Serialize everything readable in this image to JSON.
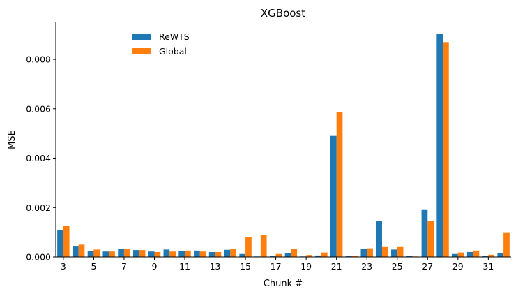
{
  "chart_data": {
    "type": "bar",
    "title": "XGBoost",
    "xlabel": "Chunk #",
    "ylabel": "MSE",
    "ylim": [
      0,
      0.0095
    ],
    "yticks": [
      0.0,
      0.002,
      0.004,
      0.006,
      0.008
    ],
    "ytick_labels": [
      "0.000",
      "0.002",
      "0.004",
      "0.006",
      "0.008"
    ],
    "categories": [
      3,
      4,
      5,
      6,
      7,
      8,
      9,
      10,
      11,
      12,
      13,
      14,
      15,
      16,
      17,
      18,
      19,
      20,
      21,
      22,
      23,
      24,
      25,
      26,
      27,
      28,
      29,
      30,
      31,
      32
    ],
    "xtick_labels": [
      "3",
      "5",
      "7",
      "9",
      "11",
      "13",
      "15",
      "17",
      "19",
      "21",
      "23",
      "25",
      "27",
      "29",
      "31"
    ],
    "legend_position": "top-left",
    "grid": false,
    "series": [
      {
        "name": "ReWTS",
        "color": "#1f77b4",
        "values": [
          0.0011,
          0.00045,
          0.00023,
          0.00022,
          0.00033,
          0.00028,
          0.00022,
          0.0003,
          0.00023,
          0.00026,
          0.0002,
          0.00029,
          0.00012,
          2e-05,
          3e-05,
          0.00015,
          2e-05,
          6e-05,
          0.0049,
          4e-05,
          0.00034,
          0.00145,
          0.0003,
          3e-05,
          0.00193,
          0.00903,
          0.00012,
          0.0002,
          3e-05,
          0.00017
        ]
      },
      {
        "name": "Global",
        "color": "#ff7f0e",
        "values": [
          0.00125,
          0.0005,
          0.0003,
          0.00022,
          0.00032,
          0.00028,
          0.0002,
          0.00022,
          0.00026,
          0.00022,
          0.0002,
          0.00032,
          0.0008,
          0.00088,
          0.00012,
          0.00032,
          8e-05,
          0.00018,
          0.00588,
          4e-05,
          0.00035,
          0.00043,
          0.00043,
          2e-05,
          0.00145,
          0.0087,
          0.00018,
          0.00026,
          9e-05,
          0.001
        ]
      }
    ]
  }
}
